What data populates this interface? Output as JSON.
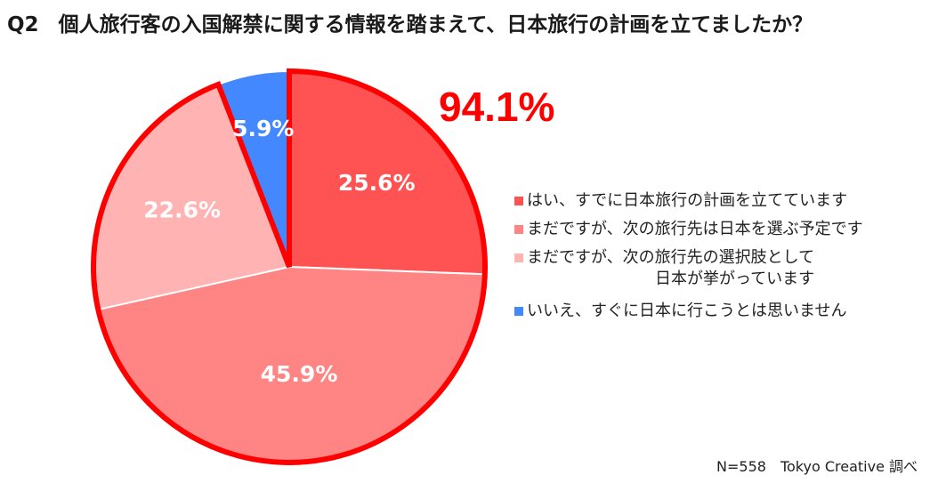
{
  "header": {
    "question_no": "Q2",
    "question": "個人旅行客の入国解禁に関する情報を踏まえて、日本旅行の計画を立てましたか？"
  },
  "highlight": "94.1%",
  "footer": "N=558　Tokyo Creative 調べ",
  "chart_data": {
    "type": "pie",
    "title": "",
    "start_angle_deg": 0,
    "direction": "clockwise",
    "highlighted_group": [
      0,
      1,
      2
    ],
    "highlighted_total": 94.1,
    "slices": [
      {
        "label": "はい、すでに日本旅行の計画を立てています",
        "value": 25.6,
        "display": "25.6%",
        "color": "#ff5252"
      },
      {
        "label": "まだですが、次の旅行先は日本を選ぶ予定です",
        "value": 45.9,
        "display": "45.9%",
        "color": "#ff8585"
      },
      {
        "label": "まだですが、次の旅行先の選択肢として",
        "label_line2": "日本が挙がっています",
        "value": 22.6,
        "display": "22.6%",
        "color": "#ffb3b3"
      },
      {
        "label": "いいえ、すぐに日本に行こうとは思いません",
        "value": 5.9,
        "display": "5.9%",
        "color": "#4488ff"
      }
    ],
    "legend_position": "right",
    "highlight_border_color": "#ff0000"
  }
}
